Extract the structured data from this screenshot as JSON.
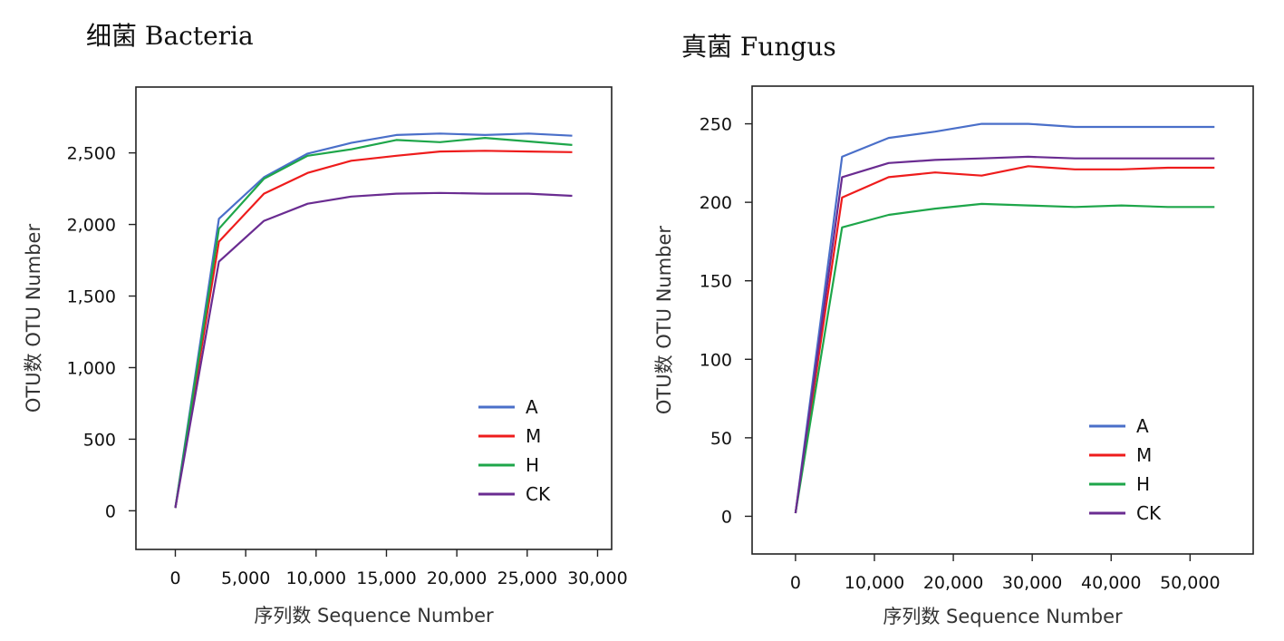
{
  "colors": {
    "A": "#4a6fc9",
    "M": "#ee1c1c",
    "H": "#1ea64a",
    "CK": "#6a2c91"
  },
  "chart_data": [
    {
      "type": "line",
      "title": "细菌 Bacteria",
      "xlabel": "序列数 Sequence Number",
      "ylabel": "OTU数 OTU Number",
      "xlim": [
        -2800,
        31000
      ],
      "ylim": [
        -270,
        2960
      ],
      "x_ticks": [
        0,
        5000,
        10000,
        15000,
        20000,
        25000,
        30000
      ],
      "x_tick_labels": [
        "0",
        "5,000",
        "10,000",
        "15,000",
        "20,000",
        "25,000",
        "30,000"
      ],
      "y_ticks": [
        0,
        500,
        1000,
        1500,
        2000,
        2500
      ],
      "y_tick_labels": [
        "0",
        "500",
        "1,000",
        "1,500",
        "2,000",
        "2,500"
      ],
      "grid": false,
      "legend_position": "bottom-right",
      "x": [
        0,
        3100,
        6300,
        9400,
        12500,
        15700,
        18800,
        22000,
        25100,
        28200
      ],
      "series": [
        {
          "name": "A",
          "values": [
            20,
            2040,
            2330,
            2495,
            2570,
            2625,
            2635,
            2625,
            2635,
            2620
          ]
        },
        {
          "name": "M",
          "values": [
            20,
            1880,
            2215,
            2360,
            2445,
            2480,
            2510,
            2515,
            2510,
            2505
          ]
        },
        {
          "name": "H",
          "values": [
            20,
            1970,
            2320,
            2480,
            2525,
            2590,
            2575,
            2605,
            2580,
            2555
          ]
        },
        {
          "name": "CK",
          "values": [
            20,
            1740,
            2025,
            2145,
            2195,
            2215,
            2220,
            2215,
            2215,
            2200
          ]
        }
      ]
    },
    {
      "type": "line",
      "title": "真菌 Fungus",
      "xlabel": "序列数 Sequence Number",
      "ylabel": "OTU数 OTU Number",
      "xlim": [
        -5500,
        58000
      ],
      "ylim": [
        -24,
        274
      ],
      "x_ticks": [
        0,
        10000,
        20000,
        30000,
        40000,
        50000
      ],
      "x_tick_labels": [
        "0",
        "10,000",
        "20,000",
        "30,000",
        "40,000",
        "50,000"
      ],
      "y_ticks": [
        0,
        50,
        100,
        150,
        200,
        250
      ],
      "y_tick_labels": [
        "0",
        "50",
        "100",
        "150",
        "200",
        "250"
      ],
      "grid": false,
      "legend_position": "bottom-right",
      "x": [
        0,
        5900,
        11800,
        17700,
        23600,
        29500,
        35400,
        41300,
        47200,
        53100
      ],
      "series": [
        {
          "name": "A",
          "values": [
            2,
            229,
            241,
            245,
            250,
            250,
            248,
            248,
            248,
            248
          ]
        },
        {
          "name": "M",
          "values": [
            2,
            203,
            216,
            219,
            217,
            223,
            221,
            221,
            222,
            222
          ]
        },
        {
          "name": "H",
          "values": [
            2,
            184,
            192,
            196,
            199,
            198,
            197,
            198,
            197,
            197
          ]
        },
        {
          "name": "CK",
          "values": [
            2,
            216,
            225,
            227,
            228,
            229,
            228,
            228,
            228,
            228
          ]
        }
      ]
    }
  ]
}
